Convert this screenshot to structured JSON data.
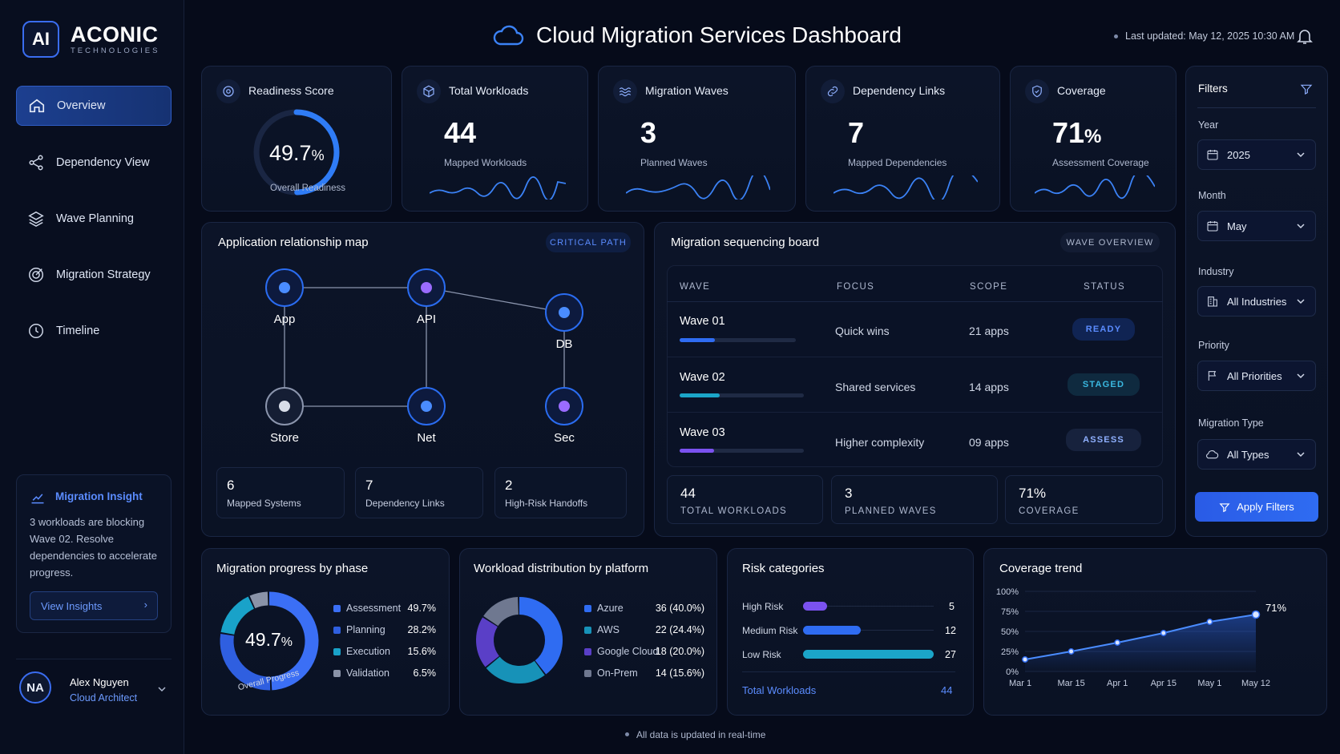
{
  "brand": {
    "mark": "AI",
    "name": "ACONIC",
    "sub": "TECHNOLOGIES"
  },
  "nav": [
    {
      "label": "Overview",
      "icon": "home-icon",
      "active": true
    },
    {
      "label": "Dependency View",
      "icon": "share-icon"
    },
    {
      "label": "Wave Planning",
      "icon": "layers-icon"
    },
    {
      "label": "Migration Strategy",
      "icon": "target-icon"
    },
    {
      "label": "Timeline",
      "icon": "clock-icon"
    }
  ],
  "insight": {
    "title": "Migration Insight",
    "text": "3 workloads are blocking Wave 02.  Resolve dependencies to accelerate progress.",
    "button": "View Insights"
  },
  "user": {
    "initials": "NA",
    "name": "Alex Nguyen",
    "role": "Cloud Architect"
  },
  "header": {
    "title": "Cloud Migration Services Dashboard",
    "updated": "Last updated: May 12, 2025 10:30 AM"
  },
  "kpis": {
    "readiness": {
      "title": "Readiness Score",
      "value": "49.7",
      "unit": "%",
      "sub": "Overall Readiness",
      "progress": 0.497
    },
    "workloads": {
      "title": "Total Workloads",
      "value": "44",
      "sub": "Mapped Workloads"
    },
    "waves": {
      "title": "Migration Waves",
      "value": "3",
      "sub": "Planned Waves"
    },
    "deps": {
      "title": "Dependency Links",
      "value": "7",
      "sub": "Mapped Dependencies"
    },
    "coverage": {
      "title": "Coverage",
      "value": "71",
      "unit": "%",
      "sub": "Assessment Coverage"
    }
  },
  "relmap": {
    "title": "Application relationship map",
    "badge": "CRITICAL PATH",
    "nodes": {
      "app": "App",
      "api": "API",
      "db": "DB",
      "store": "Store",
      "net": "Net",
      "sec": "Sec"
    },
    "stats": [
      {
        "v": "6",
        "l": "Mapped Systems"
      },
      {
        "v": "7",
        "l": "Dependency Links"
      },
      {
        "v": "2",
        "l": "High-Risk Handoffs"
      }
    ]
  },
  "board": {
    "title": "Migration sequencing board",
    "badge": "WAVE OVERVIEW",
    "headers": {
      "wave": "WAVE",
      "focus": "FOCUS",
      "scope": "SCOPE",
      "status": "STATUS"
    },
    "rows": [
      {
        "wave": "Wave 01",
        "focus": "Quick wins",
        "scope": "21 apps",
        "status": "READY",
        "progress": 0.3
      },
      {
        "wave": "Wave 02",
        "focus": "Shared services",
        "scope": "14 apps",
        "status": "STAGED",
        "progress": 0.32
      },
      {
        "wave": "Wave 03",
        "focus": "Higher complexity",
        "scope": "09 apps",
        "status": "ASSESS",
        "progress": 0.28
      }
    ],
    "stats": [
      {
        "v": "44",
        "l": "TOTAL WORKLOADS"
      },
      {
        "v": "3",
        "l": "PLANNED WAVES"
      },
      {
        "v": "71%",
        "l": "COVERAGE"
      }
    ]
  },
  "filters": {
    "title": "Filters",
    "year": {
      "label": "Year",
      "value": "2025"
    },
    "month": {
      "label": "Month",
      "value": "May"
    },
    "industry": {
      "label": "Industry",
      "value": "All Industries"
    },
    "priority": {
      "label": "Priority",
      "value": "All Priorities"
    },
    "mtype": {
      "label": "Migration Type",
      "value": "All Types"
    },
    "apply": "Apply Filters"
  },
  "progress": {
    "title": "Migration progress by phase",
    "center": "49.7",
    "unit": "%",
    "ring_label": "Overall Progress",
    "items": [
      {
        "name": "Assessment",
        "pct": "49.7%",
        "value": 49.7,
        "color": "#3b6ff5"
      },
      {
        "name": "Planning",
        "pct": "28.2%",
        "value": 28.2,
        "color": "#2f5fe0"
      },
      {
        "name": "Execution",
        "pct": "15.6%",
        "value": 15.6,
        "color": "#19a2c9"
      },
      {
        "name": "Validation",
        "pct": "6.5%",
        "value": 6.5,
        "color": "#8a93a8"
      }
    ]
  },
  "platform": {
    "title": "Workload distribution by platform",
    "items": [
      {
        "name": "Azure",
        "val": "36 (40.0%)",
        "value": 40,
        "color": "#2f6cf2"
      },
      {
        "name": "AWS",
        "val": "22 (24.4%)",
        "value": 24.4,
        "color": "#1792b8"
      },
      {
        "name": "Google Cloud",
        "val": "18 (20.0%)",
        "value": 20,
        "color": "#5a3fc7"
      },
      {
        "name": "On-Prem",
        "val": "14 (15.6%)",
        "value": 15.6,
        "color": "#6f7890"
      }
    ]
  },
  "risk": {
    "title": "Risk categories",
    "items": [
      {
        "name": "High Risk",
        "count": "5",
        "value": 5,
        "color": "#7b52f0"
      },
      {
        "name": "Medium Risk",
        "count": "12",
        "value": 12,
        "color": "#2f6cf2"
      },
      {
        "name": "Low Risk",
        "count": "27",
        "value": 27,
        "color": "#1ba5c8"
      }
    ],
    "total_label": "Total Workloads",
    "total": "44"
  },
  "footer": "All data is updated in real-time",
  "chart_data": {
    "type": "line",
    "title": "Coverage trend",
    "x": [
      "Mar 1",
      "Mar 15",
      "Apr 1",
      "Apr 15",
      "May 1",
      "May 12"
    ],
    "y_ticks": [
      "100%",
      "75%",
      "50%",
      "25%",
      "0%"
    ],
    "ylim": [
      0,
      100
    ],
    "series": [
      {
        "values": [
          15,
          25,
          36,
          48,
          62,
          71
        ]
      }
    ],
    "end_label": "71%"
  }
}
